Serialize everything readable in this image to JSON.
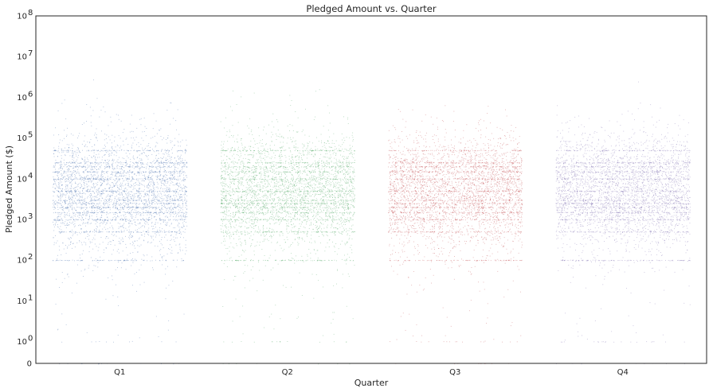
{
  "chart_data": {
    "type": "scatter",
    "subtype": "strip-plot (jittered, symlog y-axis)",
    "title": "Pledged Amount vs. Quarter",
    "xlabel": "Quarter",
    "ylabel": "Pledged Amount ($)",
    "yscale": "symlog",
    "ylim": [
      0,
      100000000
    ],
    "categories": [
      "Q1",
      "Q2",
      "Q3",
      "Q4"
    ],
    "yticks": [
      {
        "value": 0,
        "base": "0",
        "exp": ""
      },
      {
        "value": 1,
        "base": "10",
        "exp": "0"
      },
      {
        "value": 10,
        "base": "10",
        "exp": "1"
      },
      {
        "value": 100,
        "base": "10",
        "exp": "2"
      },
      {
        "value": 1000,
        "base": "10",
        "exp": "3"
      },
      {
        "value": 10000,
        "base": "10",
        "exp": "4"
      },
      {
        "value": 100000,
        "base": "10",
        "exp": "5"
      },
      {
        "value": 1000000,
        "base": "10",
        "exp": "6"
      },
      {
        "value": 10000000,
        "base": "10",
        "exp": "7"
      },
      {
        "value": 100000000,
        "base": "10",
        "exp": "8"
      }
    ],
    "series": [
      {
        "name": "Q1",
        "color": "#4c72b0",
        "median": 5000,
        "dense_range": [
          500,
          50000
        ],
        "max": 20000000,
        "min": 0
      },
      {
        "name": "Q2",
        "color": "#55a868",
        "median": 5000,
        "dense_range": [
          500,
          50000
        ],
        "max": 10000000,
        "min": 0
      },
      {
        "name": "Q3",
        "color": "#c44e52",
        "median": 5000,
        "dense_range": [
          500,
          50000
        ],
        "max": 10000000,
        "min": 0
      },
      {
        "name": "Q4",
        "color": "#8172b2",
        "median": 5000,
        "dense_range": [
          500,
          50000
        ],
        "max": 10000000,
        "min": 0
      }
    ],
    "grid": false,
    "legend": "none"
  }
}
